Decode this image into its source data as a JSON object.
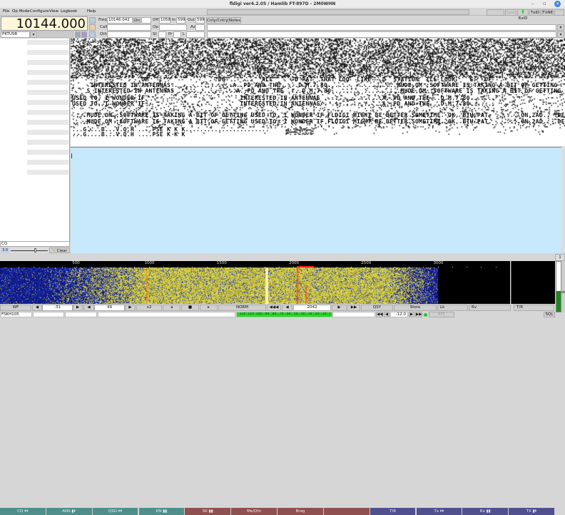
{
  "window": {
    "title": "fldigi ver4.2.05 / Hamlib FT-897D - 2M0WHN",
    "minimize": "–",
    "maximize": "▫",
    "close": "✕"
  },
  "menu": [
    "File",
    "Op Mode",
    "Configure",
    "View",
    "Logbook",
    "Help"
  ],
  "rig": {
    "frequency": "10144.000",
    "mode": "PKTUSB"
  },
  "log": {
    "freq_label": "Freq",
    "freq_value": "10146.042",
    "on_label": "On",
    "on_value": "",
    "off_label": "Off",
    "off_value": "1058",
    "in_label": "In",
    "in_value": "599",
    "out_label": "Out",
    "out_value": "599",
    "cnty_button": "Cnty/Cntry",
    "notes_button": "Notes",
    "call_label": "Call",
    "call_value": "",
    "op_label": "Op",
    "op_value": "",
    "az_label": "Az",
    "az_value": "",
    "qth_label": "Qth",
    "qth_value": "",
    "st_label": "St",
    "st_value": "",
    "pr_label": "Pr",
    "pr_value": "",
    "l_label": "L",
    "l_value": ""
  },
  "top_right": {
    "spot": "Spot",
    "rxid": "RxID",
    "txid": "TxID",
    "tune": "TUNE"
  },
  "rx_lines": [
    "                  .OM                  .08          ALL      D PAT  THAT LOO  LIKE   D  STATION  ILL LOOK    E   OF",
    "     INTERESTED IN ANTENNAS . ..............A..PD AND THE ....D.M.7.80.......  ..........MUDE,OM ;SOFTWARE IS TAKING A BIT OF GETTING",
    "    S INTERESTED IN ANTENNAS . ..............A..PD AND THE ....D.M.7.80.......  ..........MUDE,OM ;SOFTWARE IS TAKING A BIT OF GETTING",
    "USED TO, I WONDER IF                          INTERESTED IN ANTENNAS . ..............A..PD AND THE ..D.M.7.80.......",
    "USED TO, I WONDER IF                          INTERESTED IN ANTENNAS . ..............A..PD AND THE ..D.M.7.80.......",
    "....MUDE,OM ;SOFTWARE IS TAKING A BIT OF GETTING USED TO, I WONDER IF FLDIGI MIGHT BE BETTER SOMETIME. OK, BTU PAT. .......ON,2AD.. .DE",
    "....MUDE,OM ;SOFTWARE IS TAKING A BIT OF GETTING USED TO, I WONDER IF FLDIGI MIGHT BE BETTER SOMETIME. OK, BTU PAT. .......ON,2AD.. .DE",
    "...G....B...V.Q.H ....PSE K K K.......................",
    "...G....B...V.Q.H ....PSE K K K"
  ],
  "left_panel": {
    "input_value": "CQ",
    "slider_value": "3.0",
    "clear_button": "Clear"
  },
  "macros": [
    {
      "label": "CQ ⏵⏵",
      "color": "#4e8f8b"
    },
    {
      "label": "ANS ▮⏵",
      "color": "#4e8f8b"
    },
    {
      "label": "QSO ⏵⏵",
      "color": "#4e8f8b"
    },
    {
      "label": "KN ▮▮",
      "color": "#4e8f8b"
    },
    {
      "label": "SK ▮▮",
      "color": "#8f5050"
    },
    {
      "label": "Me/Qth",
      "color": "#8f5050"
    },
    {
      "label": "Brag",
      "color": "#8f5050"
    },
    {
      "label": "",
      "color": "#8f5050"
    },
    {
      "label": "T/R",
      "color": "#50508f"
    },
    {
      "label": "Tx ⏵⏵",
      "color": "#50508f"
    },
    {
      "label": "Rx ▮▮",
      "color": "#50508f"
    },
    {
      "label": "TX ▮⏵",
      "color": "#50508f"
    }
  ],
  "macro_set": "1",
  "scale": {
    "labels": [
      "500",
      "1000",
      "1500",
      "2000",
      "2500",
      "3000"
    ]
  },
  "waterfall": {
    "cursor_hz": 2042,
    "signal_low_hz": 0,
    "signal_high_hz": 3000,
    "colors": {
      "signal": "#d8d040",
      "noise": "#1830c0",
      "cursor": "#ff2020",
      "marker": "#ff8800"
    }
  },
  "controls": {
    "wf": "WF",
    "ref_level": "-31",
    "range": "49",
    "zoom": "x2",
    "speed": "NORM",
    "freq": "2042",
    "qsy": "QSY",
    "store": "Store",
    "lk": "Lk",
    "rv": "Rv",
    "tr": "T/R"
  },
  "status": {
    "mode": "FSKH105",
    "smeter": "..120..110..100...90...80...70...60...50...40...30...20...10...|",
    "squelch": "-12.0",
    "afc": "AFC",
    "sql": "SQL"
  },
  "level_meter": 0.42
}
